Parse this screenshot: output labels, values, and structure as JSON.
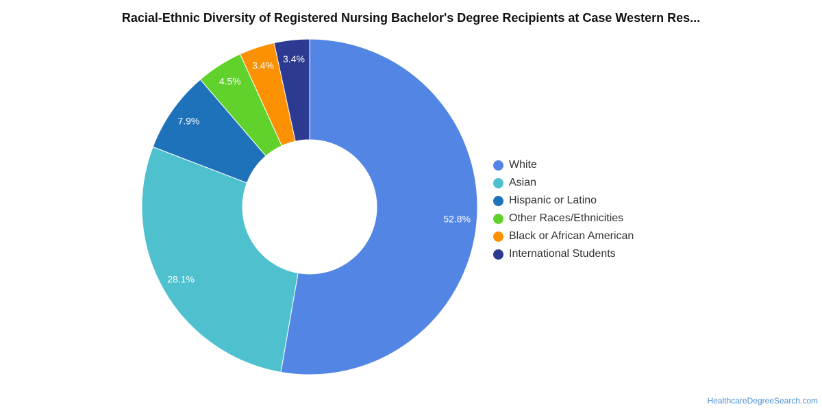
{
  "chart_data": {
    "type": "pie",
    "title": "Racial-Ethnic Diversity of Registered Nursing Bachelor's Degree Recipients at Case Western Res...",
    "legend_position": "right",
    "donut": true,
    "slices": [
      {
        "name": "White",
        "value": 52.8,
        "label": "52.8%",
        "color": "#5386e4"
      },
      {
        "name": "Asian",
        "value": 28.1,
        "label": "28.1%",
        "color": "#4fc1ce"
      },
      {
        "name": "Hispanic or Latino",
        "value": 7.9,
        "label": "7.9%",
        "color": "#1e72b9"
      },
      {
        "name": "Other Races/Ethnicities",
        "value": 4.5,
        "label": "4.5%",
        "color": "#61d12b"
      },
      {
        "name": "Black or African American",
        "value": 3.4,
        "label": "3.4%",
        "color": "#fb9102"
      },
      {
        "name": "International Students",
        "value": 3.4,
        "label": "3.4%",
        "color": "#2c3a91"
      }
    ]
  },
  "footer": {
    "source": "HealthcareDegreeSearch.com"
  }
}
